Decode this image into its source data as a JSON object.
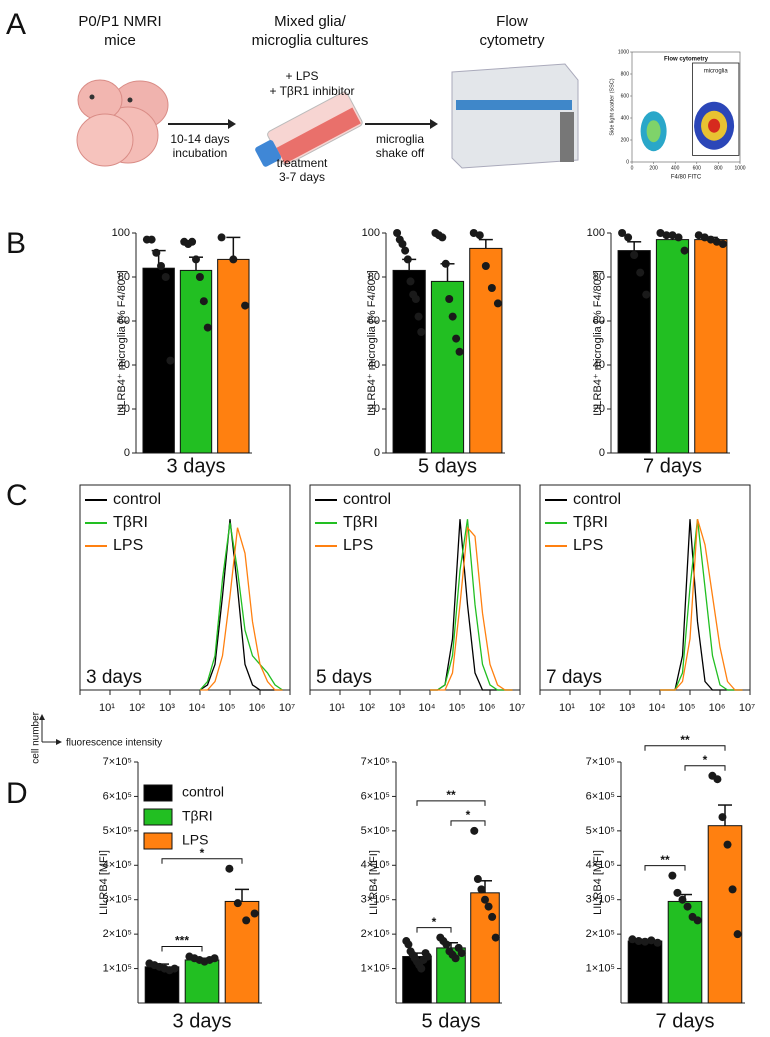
{
  "panel_labels": [
    "A",
    "B",
    "C",
    "D"
  ],
  "schematic": {
    "mice_label": [
      "P0/P1 NMRI",
      "mice"
    ],
    "culture_label": [
      "Mixed glia/",
      "microglia cultures"
    ],
    "flow_label": [
      "Flow",
      "cytometry"
    ],
    "treatments": [
      "+ LPS",
      "+ TβR1 inhibitor"
    ],
    "incubation": [
      "10-14 days",
      "incubation"
    ],
    "treatment_time": [
      "treatment",
      "3-7 days"
    ],
    "shake_off": [
      "microglia",
      "shake off"
    ],
    "inset": {
      "title": "Flow cytometry",
      "gate_label": "microglia",
      "xlabel": "F4/80 FITC",
      "ylabel": "Side light scatter (SSC)",
      "xlim": [
        0,
        1000
      ],
      "ylim": [
        0,
        1000
      ],
      "xticks": [
        0,
        200,
        400,
        600,
        800,
        1000
      ],
      "yticks": [
        0,
        200,
        400,
        600,
        800,
        1000
      ]
    }
  },
  "histogram_axes": {
    "ylabel": "cell number",
    "xlabel": "fluorescence intensity"
  },
  "chart_data": [
    {
      "type": "bar",
      "xlabel": "3 days",
      "ylabel": "LILRB4⁺ microglia [% F4/80⁺]",
      "colors": [
        "#000000",
        "#22bf22",
        "#ff8010"
      ],
      "values": [
        84,
        83,
        88
      ],
      "errors": [
        8,
        6,
        10
      ],
      "points": [
        [
          97,
          97,
          91,
          85,
          80,
          42
        ],
        [
          96,
          95,
          96,
          88,
          80,
          69,
          57
        ],
        [
          98,
          88,
          67
        ]
      ],
      "ylim": [
        0,
        100
      ],
      "yticks": [
        0,
        20,
        40,
        60,
        80,
        100
      ]
    },
    {
      "type": "bar",
      "xlabel": "5 days",
      "ylabel": "LILRB4⁺ microglia [% F4/80⁺]",
      "colors": [
        "#000000",
        "#22bf22",
        "#ff8010"
      ],
      "values": [
        83,
        78,
        93
      ],
      "errors": [
        5,
        8,
        4
      ],
      "points": [
        [
          100,
          97,
          95,
          92,
          88,
          78,
          72,
          70,
          62,
          55
        ],
        [
          100,
          99,
          98,
          86,
          70,
          62,
          52,
          46
        ],
        [
          100,
          99,
          85,
          75,
          68
        ]
      ],
      "ylim": [
        0,
        100
      ],
      "yticks": [
        0,
        20,
        40,
        60,
        80,
        100
      ]
    },
    {
      "type": "bar",
      "xlabel": "7 days",
      "ylabel": "LILRB4⁺ microglia [% F4/80⁺]",
      "colors": [
        "#000000",
        "#22bf22",
        "#ff8010"
      ],
      "values": [
        92,
        97,
        97
      ],
      "errors": [
        4,
        2,
        1
      ],
      "points": [
        [
          100,
          98,
          90,
          82,
          72
        ],
        [
          100,
          99,
          99,
          98,
          92
        ],
        [
          99,
          98,
          97,
          96,
          95
        ]
      ],
      "ylim": [
        0,
        100
      ],
      "yticks": [
        0,
        20,
        40,
        60,
        80,
        100
      ]
    },
    {
      "type": "line",
      "panel_text": "3 days",
      "xscale": "log",
      "x": [
        10000,
        17783,
        31623,
        56234,
        100000,
        177828,
        316228,
        562341,
        1000000,
        1778279,
        3162278,
        5623413
      ],
      "series": [
        {
          "name": "control",
          "color": "#000000",
          "values": [
            0,
            3,
            15,
            55,
            100,
            60,
            15,
            3,
            0,
            0,
            0,
            0
          ]
        },
        {
          "name": "TβRI",
          "color": "#22bf22",
          "values": [
            0,
            5,
            20,
            65,
            98,
            70,
            35,
            20,
            15,
            10,
            3,
            0
          ]
        },
        {
          "name": "LPS",
          "color": "#ff8010",
          "values": [
            0,
            0,
            5,
            20,
            55,
            95,
            80,
            40,
            15,
            5,
            0,
            0
          ]
        }
      ],
      "xlim": [
        1,
        10000000
      ],
      "xticks": [
        {
          "value": 10,
          "label": "10¹"
        },
        {
          "value": 100,
          "label": "10²"
        },
        {
          "value": 1000,
          "label": "10³"
        },
        {
          "value": 10000,
          "label": "10⁴"
        },
        {
          "value": 100000,
          "label": "10⁵"
        },
        {
          "value": 1000000,
          "label": "10⁶"
        },
        {
          "value": 10000000,
          "label": "10⁷"
        }
      ],
      "ylim": [
        0,
        120
      ]
    },
    {
      "type": "line",
      "panel_text": "5 days",
      "xscale": "log",
      "x": [
        10000,
        17783,
        31623,
        56234,
        100000,
        177828,
        316228,
        562341,
        1000000,
        1778279,
        3162278,
        5623413
      ],
      "series": [
        {
          "name": "control",
          "color": "#000000",
          "values": [
            0,
            0,
            3,
            30,
            100,
            50,
            10,
            0,
            0,
            0,
            0,
            0
          ]
        },
        {
          "name": "TβRI",
          "color": "#22bf22",
          "values": [
            0,
            0,
            3,
            20,
            70,
            100,
            50,
            15,
            3,
            0,
            0,
            0
          ]
        },
        {
          "name": "LPS",
          "color": "#ff8010",
          "values": [
            0,
            0,
            0,
            10,
            50,
            95,
            90,
            45,
            15,
            3,
            0,
            0
          ]
        }
      ],
      "xlim": [
        1,
        10000000
      ],
      "xticks": [
        {
          "value": 10,
          "label": "10¹"
        },
        {
          "value": 100,
          "label": "10²"
        },
        {
          "value": 1000,
          "label": "10³"
        },
        {
          "value": 10000,
          "label": "10⁴"
        },
        {
          "value": 100000,
          "label": "10⁵"
        },
        {
          "value": 1000000,
          "label": "10⁶"
        },
        {
          "value": 10000000,
          "label": "10⁷"
        }
      ],
      "ylim": [
        0,
        120
      ]
    },
    {
      "type": "line",
      "panel_text": "7 days",
      "xscale": "log",
      "x": [
        10000,
        17783,
        31623,
        56234,
        100000,
        177828,
        316228,
        562341,
        1000000,
        1778279,
        3162278,
        5623413
      ],
      "series": [
        {
          "name": "control",
          "color": "#000000",
          "values": [
            0,
            0,
            0,
            20,
            100,
            40,
            5,
            0,
            0,
            0,
            0,
            0
          ]
        },
        {
          "name": "TβRI",
          "color": "#22bf22",
          "values": [
            0,
            0,
            0,
            10,
            60,
            100,
            60,
            20,
            3,
            0,
            0,
            0
          ]
        },
        {
          "name": "LPS",
          "color": "#ff8010",
          "values": [
            0,
            0,
            0,
            5,
            30,
            100,
            85,
            55,
            25,
            5,
            0,
            0
          ]
        }
      ],
      "xlim": [
        1,
        10000000
      ],
      "xticks": [
        {
          "value": 10,
          "label": "10¹"
        },
        {
          "value": 100,
          "label": "10²"
        },
        {
          "value": 1000,
          "label": "10³"
        },
        {
          "value": 10000,
          "label": "10⁴"
        },
        {
          "value": 100000,
          "label": "10⁵"
        },
        {
          "value": 1000000,
          "label": "10⁶"
        },
        {
          "value": 10000000,
          "label": "10⁷"
        }
      ],
      "ylim": [
        0,
        120
      ]
    },
    {
      "type": "bar",
      "xlabel": "3 days",
      "ylabel": "LILRB4 [MFI]",
      "categories": [
        "control",
        "TβRI",
        "LPS"
      ],
      "colors": [
        "#000000",
        "#22bf22",
        "#ff8010"
      ],
      "values": [
        105000,
        125000,
        295000
      ],
      "errors": [
        8000,
        5000,
        35000
      ],
      "points": [
        [
          115000,
          110000,
          105000,
          100000,
          95000,
          100000
        ],
        [
          135000,
          130000,
          125000,
          120000,
          125000,
          130000
        ],
        [
          390000,
          290000,
          240000,
          260000
        ]
      ],
      "ylim": [
        0,
        700000
      ],
      "yticks": [
        {
          "value": 100000,
          "label": "1×10⁵"
        },
        {
          "value": 200000,
          "label": "2×10⁵"
        },
        {
          "value": 300000,
          "label": "3×10⁵"
        },
        {
          "value": 400000,
          "label": "4×10⁵"
        },
        {
          "value": 500000,
          "label": "5×10⁵"
        },
        {
          "value": 600000,
          "label": "6×10⁵"
        },
        {
          "value": 700000,
          "label": "7×10⁵"
        }
      ],
      "significance": [
        {
          "between": [
            0,
            1
          ],
          "label": "***"
        },
        {
          "between": [
            0,
            2
          ],
          "label": "*"
        }
      ]
    },
    {
      "type": "bar",
      "xlabel": "5 days",
      "ylabel": "LILRB4 [MFI]",
      "colors": [
        "#000000",
        "#22bf22",
        "#ff8010"
      ],
      "values": [
        135000,
        160000,
        320000
      ],
      "errors": [
        10000,
        15000,
        35000
      ],
      "points": [
        [
          180000,
          170000,
          150000,
          140000,
          130000,
          120000,
          110000,
          100000,
          125000,
          145000,
          135000
        ],
        [
          190000,
          180000,
          170000,
          150000,
          140000,
          130000,
          160000,
          145000
        ],
        [
          500000,
          360000,
          330000,
          300000,
          280000,
          250000,
          190000
        ]
      ],
      "ylim": [
        0,
        700000
      ],
      "yticks": [
        {
          "value": 100000,
          "label": "1×10⁵"
        },
        {
          "value": 200000,
          "label": "2×10⁵"
        },
        {
          "value": 300000,
          "label": "3×10⁵"
        },
        {
          "value": 400000,
          "label": "4×10⁵"
        },
        {
          "value": 500000,
          "label": "5×10⁵"
        },
        {
          "value": 600000,
          "label": "6×10⁵"
        },
        {
          "value": 700000,
          "label": "7×10⁵"
        }
      ],
      "significance": [
        {
          "between": [
            0,
            1
          ],
          "label": "*"
        },
        {
          "between": [
            1,
            2
          ],
          "label": "*"
        },
        {
          "between": [
            0,
            2
          ],
          "label": "**"
        }
      ]
    },
    {
      "type": "bar",
      "xlabel": "7 days",
      "ylabel": "LILRB4 [MFI]",
      "colors": [
        "#000000",
        "#22bf22",
        "#ff8010"
      ],
      "values": [
        180000,
        295000,
        515000
      ],
      "errors": [
        5000,
        20000,
        60000
      ],
      "points": [
        [
          185000,
          180000,
          178000,
          182000,
          175000
        ],
        [
          370000,
          320000,
          300000,
          280000,
          250000,
          240000
        ],
        [
          660000,
          650000,
          540000,
          460000,
          330000,
          200000
        ]
      ],
      "ylim": [
        0,
        700000
      ],
      "yticks": [
        {
          "value": 100000,
          "label": "1×10⁵"
        },
        {
          "value": 200000,
          "label": "2×10⁵"
        },
        {
          "value": 300000,
          "label": "3×10⁵"
        },
        {
          "value": 400000,
          "label": "4×10⁵"
        },
        {
          "value": 500000,
          "label": "5×10⁵"
        },
        {
          "value": 600000,
          "label": "6×10⁵"
        },
        {
          "value": 700000,
          "label": "7×10⁵"
        }
      ],
      "significance": [
        {
          "between": [
            0,
            1
          ],
          "label": "**"
        },
        {
          "between": [
            1,
            2
          ],
          "label": "*"
        },
        {
          "between": [
            0,
            2
          ],
          "label": "**"
        }
      ]
    }
  ]
}
